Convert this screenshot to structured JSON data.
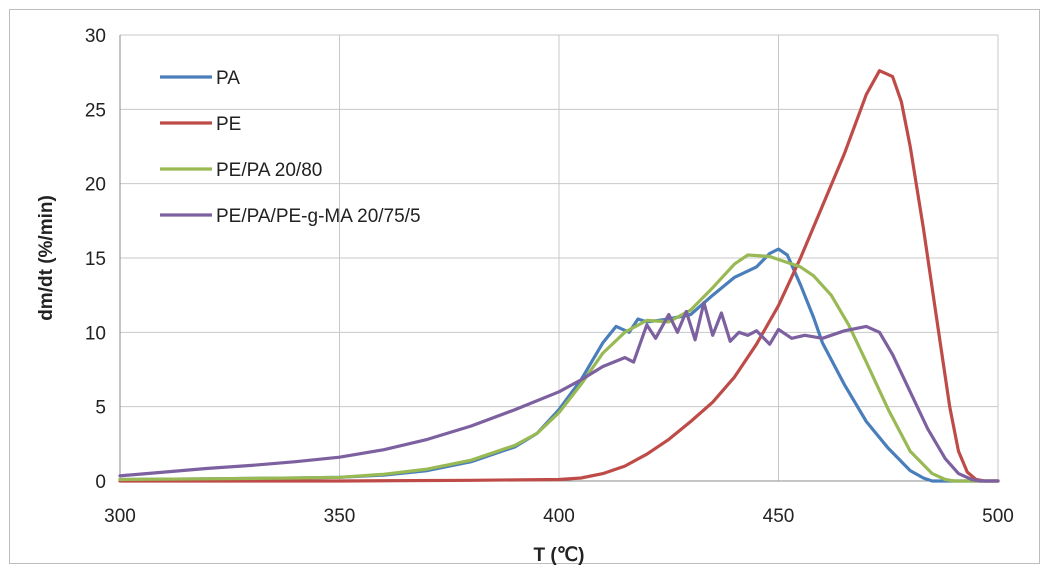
{
  "chart_data": {
    "type": "line",
    "xlabel": "T (℃)",
    "ylabel": "dm/dt (%/min)",
    "xlim": [
      300,
      500
    ],
    "ylim": [
      0,
      30
    ],
    "x_ticks": [
      300,
      350,
      400,
      450,
      500
    ],
    "y_ticks": [
      0,
      5,
      10,
      15,
      20,
      25,
      30
    ],
    "grid": true,
    "legend": "top-left",
    "series": [
      {
        "name": "PA",
        "color": "#4a7ebb",
        "points": [
          [
            300,
            0.1
          ],
          [
            320,
            0.15
          ],
          [
            340,
            0.2
          ],
          [
            350,
            0.25
          ],
          [
            360,
            0.4
          ],
          [
            370,
            0.7
          ],
          [
            380,
            1.3
          ],
          [
            390,
            2.3
          ],
          [
            395,
            3.2
          ],
          [
            400,
            4.8
          ],
          [
            405,
            6.8
          ],
          [
            410,
            9.3
          ],
          [
            413,
            10.4
          ],
          [
            416,
            10.0
          ],
          [
            418,
            10.9
          ],
          [
            420,
            10.7
          ],
          [
            425,
            10.9
          ],
          [
            430,
            11.2
          ],
          [
            435,
            12.5
          ],
          [
            440,
            13.7
          ],
          [
            445,
            14.4
          ],
          [
            448,
            15.3
          ],
          [
            450,
            15.6
          ],
          [
            452,
            15.2
          ],
          [
            455,
            13.2
          ],
          [
            458,
            11.0
          ],
          [
            460,
            9.3
          ],
          [
            465,
            6.5
          ],
          [
            470,
            4.0
          ],
          [
            475,
            2.2
          ],
          [
            480,
            0.7
          ],
          [
            483,
            0.2
          ],
          [
            485,
            0.0
          ],
          [
            500,
            0.0
          ]
        ]
      },
      {
        "name": "PE",
        "color": "#be4b48",
        "points": [
          [
            300,
            0.0
          ],
          [
            350,
            0.0
          ],
          [
            380,
            0.05
          ],
          [
            400,
            0.1
          ],
          [
            405,
            0.2
          ],
          [
            410,
            0.5
          ],
          [
            415,
            1.0
          ],
          [
            420,
            1.8
          ],
          [
            425,
            2.8
          ],
          [
            430,
            4.0
          ],
          [
            435,
            5.3
          ],
          [
            440,
            7.0
          ],
          [
            445,
            9.2
          ],
          [
            450,
            11.8
          ],
          [
            455,
            15.0
          ],
          [
            460,
            18.5
          ],
          [
            465,
            22.0
          ],
          [
            470,
            26.0
          ],
          [
            473,
            27.6
          ],
          [
            476,
            27.2
          ],
          [
            478,
            25.5
          ],
          [
            480,
            22.5
          ],
          [
            483,
            17.0
          ],
          [
            486,
            11.0
          ],
          [
            489,
            5.0
          ],
          [
            491,
            2.0
          ],
          [
            493,
            0.6
          ],
          [
            495,
            0.1
          ],
          [
            497,
            0.0
          ],
          [
            500,
            0.0
          ]
        ]
      },
      {
        "name": "PE/PA 20/80",
        "color": "#98b954",
        "points": [
          [
            300,
            0.1
          ],
          [
            320,
            0.15
          ],
          [
            340,
            0.2
          ],
          [
            350,
            0.25
          ],
          [
            360,
            0.45
          ],
          [
            370,
            0.8
          ],
          [
            380,
            1.4
          ],
          [
            390,
            2.4
          ],
          [
            395,
            3.2
          ],
          [
            400,
            4.6
          ],
          [
            405,
            6.5
          ],
          [
            410,
            8.6
          ],
          [
            415,
            10.0
          ],
          [
            420,
            10.8
          ],
          [
            425,
            10.7
          ],
          [
            430,
            11.5
          ],
          [
            435,
            13.0
          ],
          [
            440,
            14.6
          ],
          [
            443,
            15.2
          ],
          [
            448,
            15.1
          ],
          [
            452,
            14.7
          ],
          [
            455,
            14.4
          ],
          [
            458,
            13.8
          ],
          [
            462,
            12.5
          ],
          [
            466,
            10.5
          ],
          [
            470,
            8.0
          ],
          [
            475,
            4.8
          ],
          [
            480,
            2.0
          ],
          [
            485,
            0.5
          ],
          [
            488,
            0.1
          ],
          [
            490,
            0.0
          ],
          [
            500,
            0.0
          ]
        ]
      },
      {
        "name": "PE/PA/PE-g-MA 20/75/5",
        "color": "#7d60a0",
        "points": [
          [
            300,
            0.35
          ],
          [
            310,
            0.6
          ],
          [
            320,
            0.85
          ],
          [
            330,
            1.05
          ],
          [
            340,
            1.3
          ],
          [
            350,
            1.6
          ],
          [
            360,
            2.1
          ],
          [
            370,
            2.8
          ],
          [
            380,
            3.7
          ],
          [
            390,
            4.8
          ],
          [
            400,
            6.0
          ],
          [
            405,
            6.8
          ],
          [
            410,
            7.7
          ],
          [
            415,
            8.3
          ],
          [
            417,
            8.0
          ],
          [
            420,
            10.5
          ],
          [
            422,
            9.6
          ],
          [
            425,
            11.2
          ],
          [
            427,
            10.0
          ],
          [
            429,
            11.4
          ],
          [
            431,
            9.5
          ],
          [
            433,
            12.0
          ],
          [
            435,
            9.8
          ],
          [
            437,
            11.3
          ],
          [
            439,
            9.4
          ],
          [
            441,
            10.0
          ],
          [
            443,
            9.8
          ],
          [
            445,
            10.1
          ],
          [
            448,
            9.2
          ],
          [
            450,
            10.2
          ],
          [
            453,
            9.6
          ],
          [
            456,
            9.8
          ],
          [
            460,
            9.6
          ],
          [
            465,
            10.1
          ],
          [
            470,
            10.4
          ],
          [
            473,
            10.0
          ],
          [
            476,
            8.5
          ],
          [
            480,
            6.0
          ],
          [
            484,
            3.5
          ],
          [
            488,
            1.5
          ],
          [
            491,
            0.5
          ],
          [
            494,
            0.1
          ],
          [
            496,
            0.0
          ],
          [
            500,
            0.0
          ]
        ]
      }
    ]
  }
}
